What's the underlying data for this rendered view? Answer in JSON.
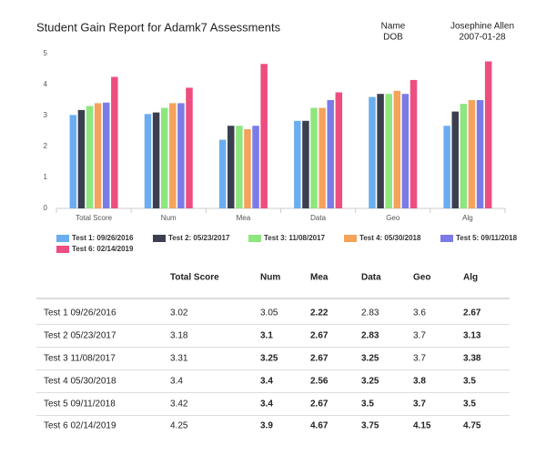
{
  "header": {
    "title": "Student Gain Report for Adamk7 Assessments",
    "name_label": "Name",
    "dob_label": "DOB",
    "name": "Josephine Allen",
    "dob": "2007-01-28"
  },
  "chart_data": {
    "type": "bar",
    "categories": [
      "Total Score",
      "Num",
      "Mea",
      "Data",
      "Geo",
      "Alg"
    ],
    "series": [
      {
        "name": "Test 1: 09/26/2016",
        "color": "#6aaef0",
        "values": [
          3.02,
          3.05,
          2.22,
          2.83,
          3.6,
          2.67
        ]
      },
      {
        "name": "Test 2: 05/23/2017",
        "color": "#3b3f4f",
        "values": [
          3.18,
          3.1,
          2.67,
          2.83,
          3.7,
          3.13
        ]
      },
      {
        "name": "Test 3: 11/08/2017",
        "color": "#8ee67e",
        "values": [
          3.31,
          3.25,
          2.67,
          3.25,
          3.7,
          3.38
        ]
      },
      {
        "name": "Test 4: 05/30/2018",
        "color": "#f5a25a",
        "values": [
          3.4,
          3.4,
          2.56,
          3.25,
          3.8,
          3.5
        ]
      },
      {
        "name": "Test 5: 09/11/2018",
        "color": "#7b7be8",
        "values": [
          3.42,
          3.4,
          2.67,
          3.5,
          3.7,
          3.5
        ]
      },
      {
        "name": "Test 6: 02/14/2019",
        "color": "#ee4d80",
        "values": [
          4.25,
          3.9,
          4.67,
          3.75,
          4.15,
          4.75
        ]
      }
    ],
    "ylim": [
      0,
      5
    ],
    "yticks": [
      0,
      1,
      2,
      3,
      4,
      5
    ],
    "grid": false,
    "legend": "bottom"
  },
  "table": {
    "columns": [
      "Total Score",
      "Num",
      "Mea",
      "Data",
      "Geo",
      "Alg"
    ],
    "rows": [
      [
        "Test 1 09/26/2016",
        "3.02",
        "3.05",
        "2.22",
        "2.83",
        "3.6",
        "2.67"
      ],
      [
        "Test 2 05/23/2017",
        "3.18",
        "3.1",
        "2.67",
        "2.83",
        "3.7",
        "3.13"
      ],
      [
        "Test 3 11/08/2017",
        "3.31",
        "3.25",
        "2.67",
        "3.25",
        "3.7",
        "3.38"
      ],
      [
        "Test 4 05/30/2018",
        "3.4",
        "3.4",
        "2.56",
        "3.25",
        "3.8",
        "3.5"
      ],
      [
        "Test 5 09/11/2018",
        "3.42",
        "3.4",
        "2.67",
        "3.5",
        "3.7",
        "3.5"
      ],
      [
        "Test 6 02/14/2019",
        "4.25",
        "3.9",
        "4.67",
        "3.75",
        "4.15",
        "4.75"
      ]
    ]
  }
}
